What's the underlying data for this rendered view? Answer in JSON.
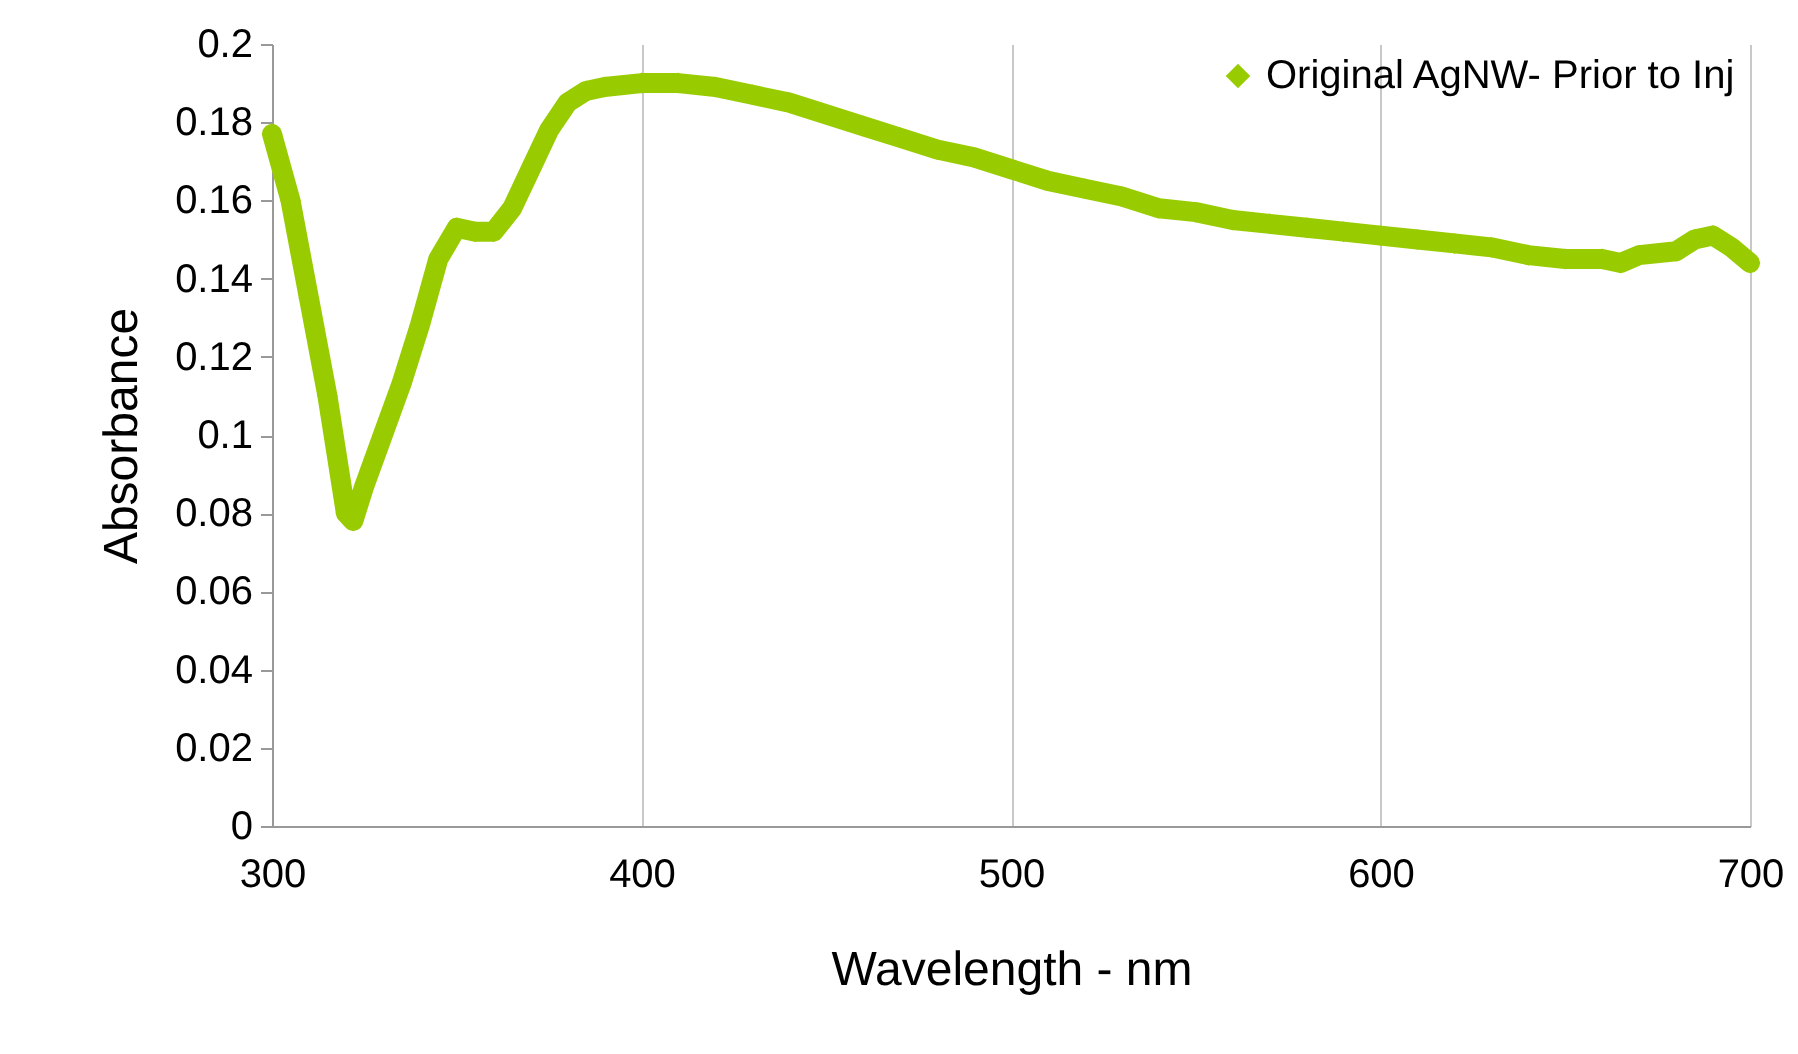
{
  "chart_data": {
    "type": "line",
    "xlabel": "Wavelength - nm",
    "ylabel": "Absorbance",
    "xlim": [
      300,
      700
    ],
    "xticks": [
      300,
      400,
      500,
      600,
      700
    ],
    "ylim": [
      0,
      0.2
    ],
    "yticks": [
      0,
      0.02,
      0.04,
      0.06,
      0.08,
      0.1,
      0.12,
      0.14,
      0.16,
      0.18,
      0.2
    ],
    "grid": "x",
    "legend": "top right",
    "marker": "diamond",
    "line_style": "solid",
    "x": [
      300,
      305,
      310,
      315,
      320,
      322,
      325,
      330,
      335,
      340,
      345,
      350,
      355,
      360,
      365,
      370,
      375,
      380,
      385,
      390,
      400,
      410,
      420,
      430,
      440,
      450,
      460,
      470,
      480,
      490,
      500,
      510,
      520,
      530,
      540,
      550,
      560,
      570,
      580,
      590,
      600,
      610,
      620,
      630,
      640,
      650,
      660,
      665,
      670,
      680,
      685,
      690,
      695,
      700
    ],
    "series": [
      {
        "name": "Original AgNW- Prior to Inj",
        "color": "#99cc00",
        "values": [
          0.177,
          0.16,
          0.135,
          0.11,
          0.08,
          0.078,
          0.087,
          0.1,
          0.113,
          0.128,
          0.145,
          0.153,
          0.152,
          0.152,
          0.158,
          0.168,
          0.178,
          0.185,
          0.188,
          0.189,
          0.19,
          0.19,
          0.189,
          0.187,
          0.185,
          0.182,
          0.179,
          0.176,
          0.173,
          0.171,
          0.168,
          0.165,
          0.163,
          0.161,
          0.158,
          0.157,
          0.155,
          0.154,
          0.153,
          0.152,
          0.151,
          0.15,
          0.149,
          0.148,
          0.146,
          0.145,
          0.145,
          0.144,
          0.146,
          0.147,
          0.15,
          0.151,
          0.148,
          0.144
        ]
      }
    ]
  }
}
